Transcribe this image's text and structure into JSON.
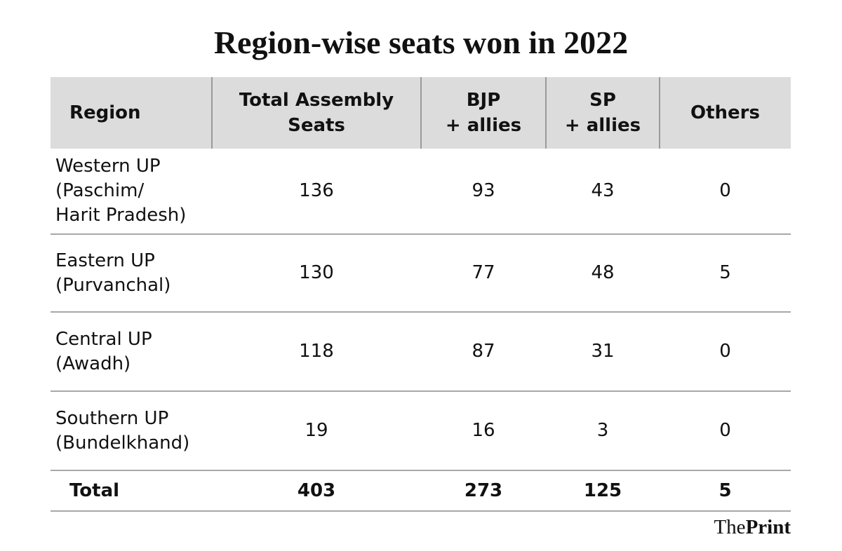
{
  "chart_data": {
    "type": "table",
    "title": "Region-wise seats won in 2022",
    "columns": [
      "Region",
      "Total Assembly\nSeats",
      "BJP\n+ allies",
      "SP\n+ allies",
      "Others"
    ],
    "rows": [
      {
        "region": "Western UP\n(Paschim/\nHarit Pradesh)",
        "total": "136",
        "bjp": "93",
        "sp": "43",
        "others": "0"
      },
      {
        "region": "Eastern UP\n(Purvanchal)",
        "total": "130",
        "bjp": "77",
        "sp": "48",
        "others": "5"
      },
      {
        "region": "Central UP\n(Awadh)",
        "total": "118",
        "bjp": "87",
        "sp": "31",
        "others": "0"
      },
      {
        "region": "Southern UP\n(Bundelkhand)",
        "total": "19",
        "bjp": "16",
        "sp": "3",
        "others": "0"
      }
    ],
    "totals": {
      "region": "Total",
      "total": "403",
      "bjp": "273",
      "sp": "125",
      "others": "5"
    }
  },
  "header": {
    "region": "Region",
    "total_line1": "Total Assembly",
    "total_line2": "Seats",
    "bjp_line1": "BJP",
    "bjp_line2": "+ allies",
    "sp_line1": "SP",
    "sp_line2": "+ allies",
    "others": "Others"
  },
  "brand": {
    "part1": "The",
    "part2": "Print"
  },
  "colors": {
    "header_bg": "#dcdcdc",
    "rule": "#a8a8a8",
    "text": "#111111"
  }
}
